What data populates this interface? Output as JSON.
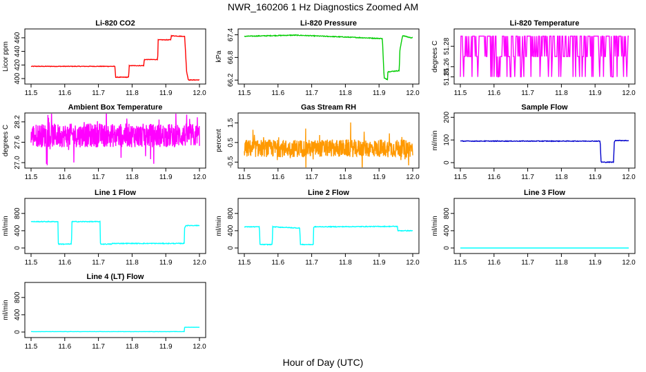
{
  "main_title": "NWR_160206  1 Hz Diagnostics Zoomed AM",
  "x_axis_label": "Hour of Day (UTC)",
  "chart_data": [
    {
      "type": "line",
      "title": "Li-820 CO2",
      "ylabel": "Licor ppm",
      "color": "#ff0000",
      "xlim": [
        11.5,
        12.0
      ],
      "ylim": [
        395,
        470
      ],
      "x_ticks": [
        "11.5",
        "11.6",
        "11.7",
        "11.8",
        "11.9",
        "12.0"
      ],
      "y_ticks": [
        "400",
        "420",
        "440",
        "460"
      ],
      "noise": 0.4,
      "series": [
        {
          "x": [
            11.5,
            11.749,
            11.751,
            11.79,
            11.791,
            11.835,
            11.836,
            11.876,
            11.877,
            11.915,
            11.916,
            11.956,
            11.962,
            11.967,
            12.0
          ],
          "y": [
            418,
            418,
            402,
            402,
            419,
            419,
            428,
            428,
            457,
            457,
            463,
            462,
            410,
            398,
            398
          ]
        }
      ]
    },
    {
      "type": "line",
      "title": "Li-820 Pressure",
      "ylabel": "kPa",
      "color": "#00cc00",
      "xlim": [
        11.5,
        12.0
      ],
      "ylim": [
        66.15,
        67.5
      ],
      "x_ticks": [
        "11.5",
        "11.6",
        "11.7",
        "11.8",
        "11.9",
        "12.0"
      ],
      "y_ticks": [
        "66.2",
        "66.8",
        "67.4"
      ],
      "noise": 0.01,
      "series": [
        {
          "x": [
            11.5,
            11.65,
            11.8,
            11.91,
            11.915,
            11.925,
            11.926,
            11.96,
            11.962,
            11.97,
            11.99,
            12.0
          ],
          "y": [
            67.36,
            67.39,
            67.34,
            67.3,
            66.25,
            66.22,
            66.42,
            66.45,
            67.0,
            67.38,
            67.33,
            67.32
          ]
        }
      ]
    },
    {
      "type": "line",
      "title": "Li-820 Temperature",
      "ylabel": "degrees C",
      "color": "#ff00ff",
      "xlim": [
        11.5,
        12.0
      ],
      "ylim": [
        51.245,
        51.295
      ],
      "x_ticks": [
        "11.5",
        "11.6",
        "11.7",
        "11.8",
        "11.9",
        "12.0"
      ],
      "y_ticks": [
        "51.25",
        "51.26",
        "51.28"
      ],
      "levels": [
        51.25,
        51.27,
        51.29
      ],
      "series": []
    },
    {
      "type": "line",
      "title": "Ambient Box Temperature",
      "ylabel": "degrees C",
      "color": "#ff00ff",
      "xlim": [
        11.5,
        12.0
      ],
      "ylim": [
        26.9,
        28.4
      ],
      "x_ticks": [
        "11.5",
        "11.6",
        "11.7",
        "11.8",
        "11.9",
        "12.0"
      ],
      "y_ticks": [
        "27.0",
        "27.6",
        "28.2"
      ],
      "noise_center": 27.8,
      "noise_amp": 0.35,
      "series": []
    },
    {
      "type": "line",
      "title": "Gas Stream RH",
      "ylabel": "percent",
      "color": "#ff9900",
      "xlim": [
        11.5,
        12.0
      ],
      "ylim": [
        -0.7,
        1.9
      ],
      "x_ticks": [
        "11.5",
        "11.6",
        "11.7",
        "11.8",
        "11.9",
        "12.0"
      ],
      "y_ticks": [
        "-0.5",
        "0.5",
        "1.5"
      ],
      "noise_center": 0.2,
      "noise_amp": 0.45,
      "series": []
    },
    {
      "type": "line",
      "title": "Sample Flow",
      "ylabel": "ml/min",
      "color": "#0000cc",
      "xlim": [
        11.5,
        12.0
      ],
      "ylim": [
        -15,
        210
      ],
      "x_ticks": [
        "11.5",
        "11.6",
        "11.7",
        "11.8",
        "11.9",
        "12.0"
      ],
      "y_ticks": [
        "0",
        "100",
        "200"
      ],
      "noise": 1.5,
      "series": [
        {
          "x": [
            11.5,
            11.915,
            11.918,
            11.955,
            11.957,
            11.96,
            12.0
          ],
          "y": [
            95,
            95,
            2,
            2,
            90,
            98,
            97
          ]
        }
      ]
    },
    {
      "type": "line",
      "title": "Line 1 Flow",
      "ylabel": "ml/min",
      "color": "#00ffff",
      "xlim": [
        11.5,
        12.0
      ],
      "ylim": [
        -80,
        1100
      ],
      "x_ticks": [
        "11.5",
        "11.6",
        "11.7",
        "11.8",
        "11.9",
        "12.0"
      ],
      "y_ticks": [
        "0",
        "400",
        "800"
      ],
      "noise": 8,
      "series": [
        {
          "x": [
            11.5,
            11.58,
            11.581,
            11.62,
            11.621,
            11.705,
            11.706,
            11.74,
            11.741,
            11.955,
            11.956,
            11.96,
            12.0
          ],
          "y": [
            610,
            610,
            90,
            90,
            610,
            610,
            90,
            90,
            105,
            105,
            480,
            520,
            520
          ]
        }
      ]
    },
    {
      "type": "line",
      "title": "Line 2 Flow",
      "ylabel": "ml/min",
      "color": "#00ffff",
      "xlim": [
        11.5,
        12.0
      ],
      "ylim": [
        -80,
        1100
      ],
      "x_ticks": [
        "11.5",
        "11.6",
        "11.7",
        "11.8",
        "11.9",
        "12.0"
      ],
      "y_ticks": [
        "0",
        "400",
        "800"
      ],
      "noise": 8,
      "series": [
        {
          "x": [
            11.5,
            11.545,
            11.546,
            11.583,
            11.584,
            11.665,
            11.666,
            11.705,
            11.706,
            11.955,
            11.956,
            12.0
          ],
          "y": [
            490,
            490,
            80,
            80,
            490,
            460,
            80,
            80,
            490,
            500,
            400,
            400
          ]
        }
      ]
    },
    {
      "type": "line",
      "title": "Line 3 Flow",
      "ylabel": "ml/min",
      "color": "#00ffff",
      "xlim": [
        11.5,
        12.0
      ],
      "ylim": [
        -80,
        1100
      ],
      "x_ticks": [
        "11.5",
        "11.6",
        "11.7",
        "11.8",
        "11.9",
        "12.0"
      ],
      "y_ticks": [
        "0",
        "400",
        "800"
      ],
      "noise": 0,
      "series": [
        {
          "x": [
            11.5,
            12.0
          ],
          "y": [
            0,
            0
          ]
        }
      ]
    },
    {
      "type": "line",
      "title": "Line 4 (LT) Flow",
      "ylabel": "ml/min",
      "color": "#00ffff",
      "xlim": [
        11.5,
        12.0
      ],
      "ylim": [
        -80,
        1100
      ],
      "x_ticks": [
        "11.5",
        "11.6",
        "11.7",
        "11.8",
        "11.9",
        "12.0"
      ],
      "y_ticks": [
        "0",
        "400",
        "800"
      ],
      "noise": 2,
      "series": [
        {
          "x": [
            11.5,
            11.955,
            11.956,
            12.0
          ],
          "y": [
            10,
            10,
            110,
            110
          ]
        }
      ]
    }
  ]
}
